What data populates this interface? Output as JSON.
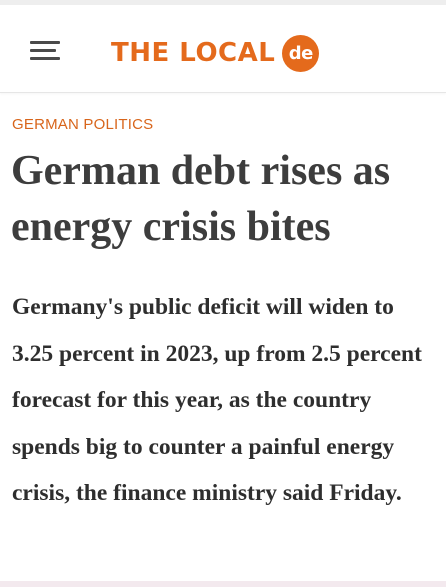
{
  "header": {
    "logo_text": "THE LOCAL",
    "logo_badge": "de",
    "menu_icon": "hamburger-menu-icon",
    "brand_color": "#e46a1c"
  },
  "article": {
    "category": "GERMAN POLITICS",
    "headline": "German debt rises as energy crisis bites",
    "lede": "Germany's public deficit will widen to 3.25 percent in 2023, up from 2.5 percent forecast for this year, as the country spends big to counter a painful energy crisis, the finance ministry said Friday."
  }
}
